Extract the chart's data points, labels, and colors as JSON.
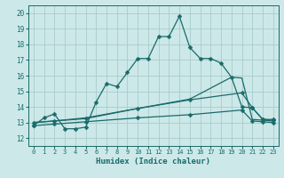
{
  "xlabel": "Humidex (Indice chaleur)",
  "bg_color": "#cce8e8",
  "grid_color": "#aacccc",
  "line_color": "#1a6b6b",
  "x_ticks": [
    0,
    1,
    2,
    3,
    4,
    5,
    6,
    7,
    8,
    9,
    10,
    11,
    12,
    13,
    14,
    15,
    16,
    17,
    18,
    19,
    20,
    21,
    22,
    23
  ],
  "y_ticks": [
    12,
    13,
    14,
    15,
    16,
    17,
    18,
    19,
    20
  ],
  "xlim": [
    -0.5,
    23.5
  ],
  "ylim": [
    11.5,
    20.5
  ],
  "lines": [
    {
      "x": [
        0,
        1,
        2,
        3,
        4,
        5,
        6,
        7,
        8,
        9,
        10,
        11,
        12,
        13,
        14,
        15,
        16,
        17,
        18,
        19,
        20,
        21,
        22,
        23
      ],
      "y": [
        12.8,
        13.3,
        13.55,
        12.6,
        12.6,
        12.7,
        14.3,
        15.5,
        15.3,
        16.2,
        17.1,
        17.1,
        18.5,
        18.5,
        19.8,
        17.8,
        17.1,
        17.1,
        16.8,
        15.9,
        14.0,
        13.95,
        13.2,
        13.2
      ],
      "marker": "D",
      "markersize": 2.5,
      "lw": 0.9
    },
    {
      "x": [
        0,
        2,
        5,
        10,
        15,
        19,
        20,
        21,
        22,
        23
      ],
      "y": [
        13.0,
        13.1,
        13.3,
        13.9,
        14.5,
        15.9,
        15.85,
        13.2,
        13.15,
        13.1
      ],
      "marker": null,
      "markersize": 0,
      "lw": 0.9
    },
    {
      "x": [
        0,
        2,
        5,
        10,
        15,
        20,
        21,
        22,
        23
      ],
      "y": [
        13.0,
        13.1,
        13.25,
        13.9,
        14.45,
        14.9,
        13.95,
        13.2,
        13.15
      ],
      "marker": "D",
      "markersize": 2.5,
      "lw": 0.9
    },
    {
      "x": [
        0,
        2,
        5,
        10,
        15,
        20,
        21,
        22,
        23
      ],
      "y": [
        12.8,
        12.9,
        13.05,
        13.3,
        13.5,
        13.8,
        13.1,
        13.05,
        13.0
      ],
      "marker": "D",
      "markersize": 2.5,
      "lw": 0.9
    }
  ]
}
